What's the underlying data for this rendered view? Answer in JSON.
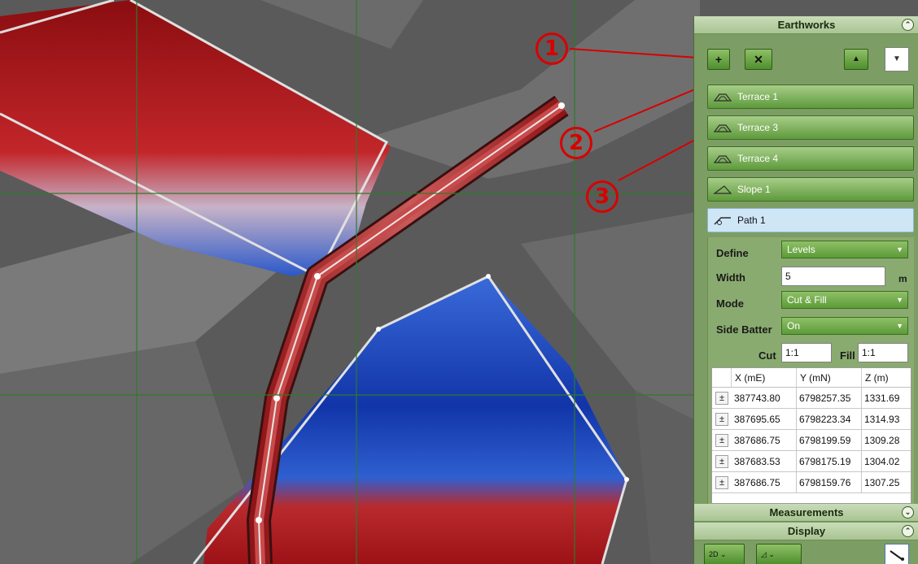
{
  "panel": {
    "earthworks_title": "Earthworks",
    "measurements_title": "Measurements",
    "display_title": "Display",
    "add_label": "+",
    "delete_label": "✕",
    "up_label": "▲",
    "dropdown_label": "▼",
    "collapse_up": "⌃",
    "collapse_down": "⌄",
    "items": [
      {
        "label": "Terrace 1",
        "icon": "terrace-icon"
      },
      {
        "label": "Terrace 3",
        "icon": "terrace-icon"
      },
      {
        "label": "Terrace 4",
        "icon": "terrace-icon"
      },
      {
        "label": "Slope 1",
        "icon": "slope-icon"
      },
      {
        "label": "Path 1",
        "icon": "path-icon",
        "selected": true
      }
    ],
    "properties": {
      "define_label": "Define",
      "define_value": "Levels",
      "width_label": "Width",
      "width_value": "5",
      "width_unit": "m",
      "mode_label": "Mode",
      "mode_value": "Cut & Fill",
      "side_batter_label": "Side Batter",
      "side_batter_value": "On",
      "cut_label": "Cut",
      "cut_value": "1:1",
      "fill_label": "Fill",
      "fill_value": "1:1"
    },
    "table": {
      "headers": [
        "X (mE)",
        "Y (mN)",
        "Z (m)"
      ],
      "rows": [
        [
          "387743.80",
          "6798257.35",
          "1331.69"
        ],
        [
          "387695.65",
          "6798223.34",
          "1314.93"
        ],
        [
          "387686.75",
          "6798199.59",
          "1309.28"
        ],
        [
          "387683.53",
          "6798175.19",
          "1304.02"
        ],
        [
          "387686.75",
          "6798159.76",
          "1307.25"
        ]
      ],
      "row_button": "±"
    },
    "bottom_tool_label": "2D"
  },
  "callouts": [
    "1",
    "2",
    "3"
  ],
  "colors": {
    "cut": "#b3161b",
    "fill": "#1e4fc4",
    "panel_green": "#7c9e64",
    "callout_red": "#d80000"
  }
}
